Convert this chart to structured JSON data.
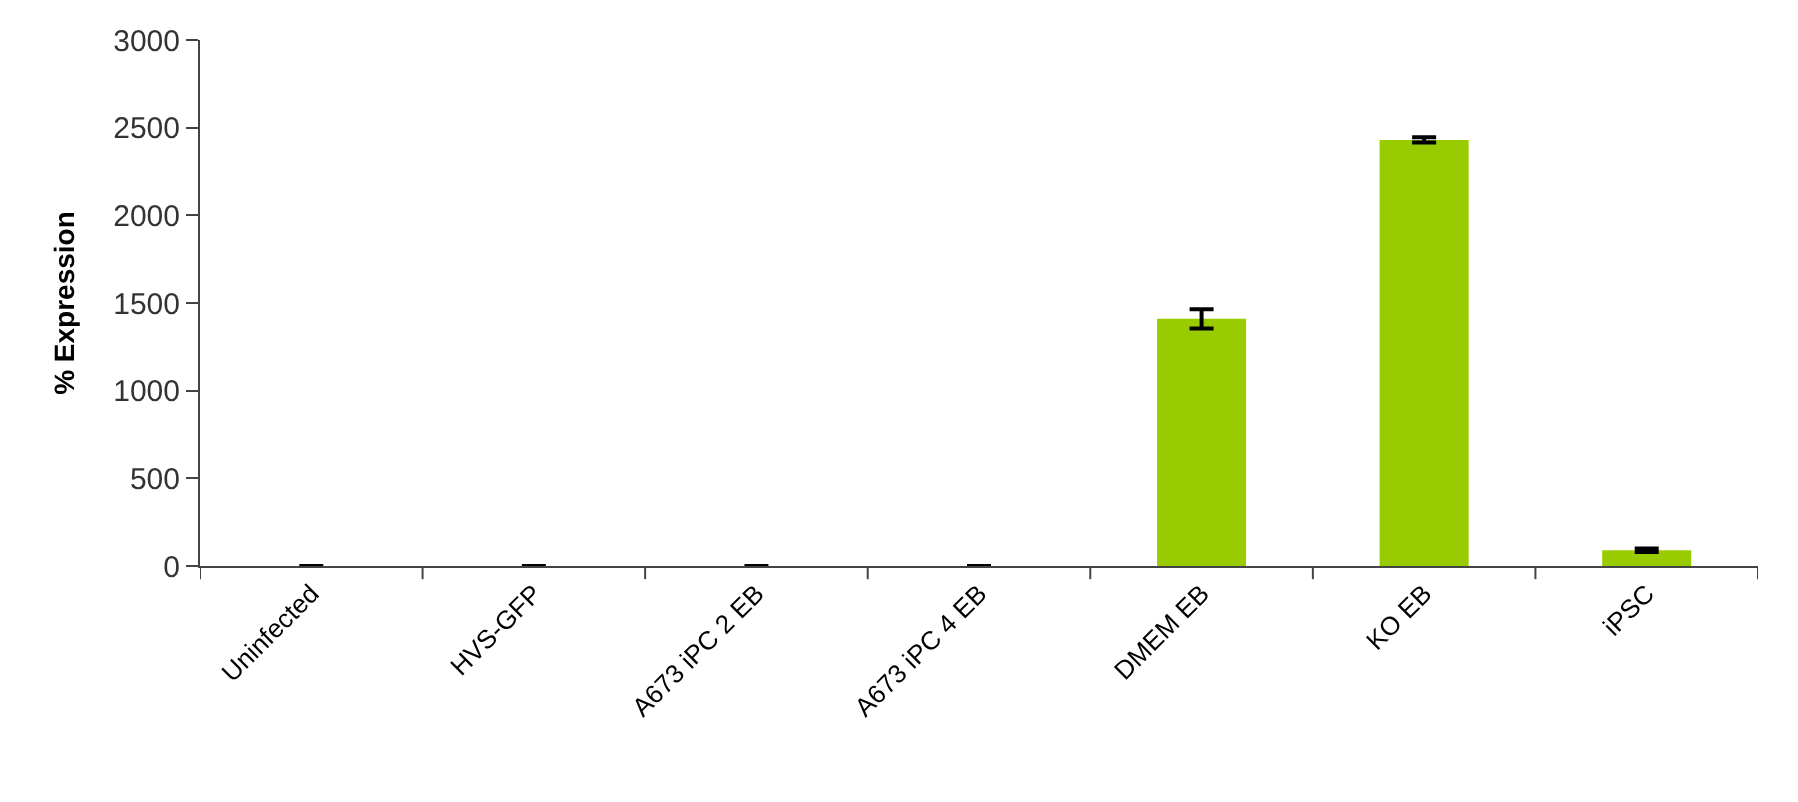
{
  "chart_data": {
    "type": "bar",
    "ylabel": "% Expression",
    "categories": [
      "Uninfected",
      "HVS-GFP",
      "A673 iPC 2 EB",
      "A673 iPC 4 EB",
      "DMEM EB",
      "KO EB",
      "iPSC"
    ],
    "values": [
      0,
      0,
      0,
      0,
      1410,
      2430,
      90
    ],
    "errors": [
      null,
      null,
      null,
      null,
      55,
      15,
      10
    ],
    "color": "#99cc00",
    "ylim": [
      0,
      3000
    ],
    "yticks": [
      0,
      500,
      1000,
      1500,
      2000,
      2500,
      3000
    ]
  }
}
